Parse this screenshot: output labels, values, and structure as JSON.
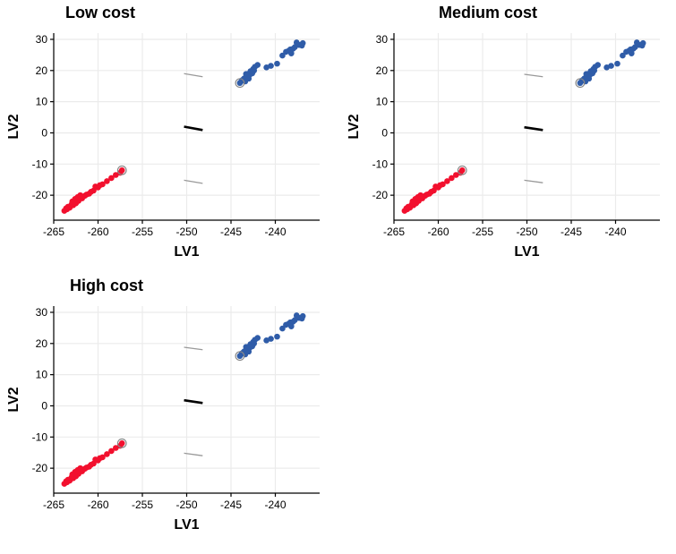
{
  "colors": {
    "group_high": "#2f5ca8",
    "group_low": "#f2102e",
    "center_line": "#000000",
    "bound_line": "#999999",
    "grid": "#ebebeb"
  },
  "chart_data": [
    {
      "type": "scatter",
      "title": "Low cost",
      "xlabel": "LV1",
      "ylabel": "LV2",
      "xlim": [
        -265,
        -235
      ],
      "ylim": [
        -28,
        32
      ],
      "xticks": [
        -265,
        -260,
        -255,
        -250,
        -245,
        -240
      ],
      "yticks": [
        -20,
        -10,
        0,
        10,
        20,
        30
      ],
      "grid": true,
      "series": [
        {
          "name": "blue group",
          "color": "#2f5ca8",
          "x": [
            -244.0,
            -243.8,
            -243.5,
            -243.2,
            -243.0,
            -242.8,
            -242.5,
            -242.3,
            -242.0,
            -243.6,
            -243.1,
            -242.7,
            -243.4,
            -242.9,
            -242.4,
            -243.0,
            -242.6,
            -243.3,
            -241.0,
            -240.5,
            -239.8,
            -239.2,
            -238.8,
            -238.3,
            -237.8,
            -237.3,
            -236.9,
            -238.5,
            -238.0,
            -237.6,
            -238.2,
            -237.0
          ],
          "y": [
            16.0,
            16.8,
            17.5,
            18.3,
            19.0,
            19.8,
            20.5,
            21.2,
            21.8,
            17.2,
            18.0,
            19.3,
            16.5,
            18.6,
            20.0,
            17.4,
            19.1,
            18.9,
            21.0,
            21.5,
            22.2,
            24.8,
            26.0,
            26.8,
            27.5,
            28.2,
            28.8,
            26.3,
            27.0,
            29.0,
            25.5,
            28.0
          ],
          "highlight": [
            -244.0,
            16.0
          ]
        },
        {
          "name": "red group",
          "color": "#f2102e",
          "x": [
            -263.8,
            -263.5,
            -263.2,
            -262.8,
            -262.5,
            -262.2,
            -261.8,
            -261.5,
            -261.0,
            -260.5,
            -260.0,
            -259.5,
            -259.0,
            -258.5,
            -258.0,
            -257.5,
            -257.3,
            -263.6,
            -263.0,
            -262.6,
            -262.0,
            -261.3,
            -260.8,
            -260.3,
            -259.8,
            -263.4,
            -262.9,
            -262.3
          ],
          "y": [
            -25.0,
            -24.5,
            -24.0,
            -23.2,
            -22.6,
            -21.8,
            -21.0,
            -20.2,
            -19.5,
            -18.5,
            -17.5,
            -16.5,
            -15.5,
            -14.5,
            -13.5,
            -12.8,
            -12.0,
            -24.2,
            -23.0,
            -21.2,
            -20.0,
            -19.8,
            -18.9,
            -17.2,
            -16.8,
            -23.7,
            -22.0,
            -20.6
          ],
          "highlight": [
            -257.3,
            -12.0
          ]
        }
      ],
      "segments": [
        {
          "kind": "center",
          "x": [
            -250.3,
            -248.2
          ],
          "y": [
            2.0,
            0.9
          ]
        },
        {
          "kind": "bound",
          "x": [
            -250.3,
            -248.2
          ],
          "y": [
            19.0,
            18.0
          ]
        },
        {
          "kind": "bound",
          "x": [
            -250.3,
            -248.2
          ],
          "y": [
            -15.2,
            -16.2
          ]
        }
      ]
    },
    {
      "type": "scatter",
      "title": "Medium cost",
      "xlabel": "LV1",
      "ylabel": "LV2",
      "xlim": [
        -265,
        -235
      ],
      "ylim": [
        -28,
        32
      ],
      "xticks": [
        -265,
        -260,
        -255,
        -250,
        -245,
        -240
      ],
      "yticks": [
        -20,
        -10,
        0,
        10,
        20,
        30
      ],
      "grid": true,
      "series": [
        {
          "name": "blue group",
          "color": "#2f5ca8",
          "x": [
            -244.0,
            -243.8,
            -243.5,
            -243.2,
            -243.0,
            -242.8,
            -242.5,
            -242.3,
            -242.0,
            -243.6,
            -243.1,
            -242.7,
            -243.4,
            -242.9,
            -242.4,
            -243.0,
            -242.6,
            -243.3,
            -241.0,
            -240.5,
            -239.8,
            -239.2,
            -238.8,
            -238.3,
            -237.8,
            -237.3,
            -236.9,
            -238.5,
            -238.0,
            -237.6,
            -238.2,
            -237.0
          ],
          "y": [
            16.0,
            16.8,
            17.5,
            18.3,
            19.0,
            19.8,
            20.5,
            21.2,
            21.8,
            17.2,
            18.0,
            19.3,
            16.5,
            18.6,
            20.0,
            17.4,
            19.1,
            18.9,
            21.0,
            21.5,
            22.2,
            24.8,
            26.0,
            26.8,
            27.5,
            28.2,
            28.8,
            26.3,
            27.0,
            29.0,
            25.5,
            28.0
          ],
          "highlight": [
            -244.0,
            16.0
          ]
        },
        {
          "name": "red group",
          "color": "#f2102e",
          "x": [
            -263.8,
            -263.5,
            -263.2,
            -262.8,
            -262.5,
            -262.2,
            -261.8,
            -261.5,
            -261.0,
            -260.5,
            -260.0,
            -259.5,
            -259.0,
            -258.5,
            -258.0,
            -257.5,
            -257.3,
            -263.6,
            -263.0,
            -262.6,
            -262.0,
            -261.3,
            -260.8,
            -260.3,
            -259.8,
            -263.4,
            -262.9,
            -262.3
          ],
          "y": [
            -25.0,
            -24.5,
            -24.0,
            -23.2,
            -22.6,
            -21.8,
            -21.0,
            -20.2,
            -19.5,
            -18.5,
            -17.5,
            -16.5,
            -15.5,
            -14.5,
            -13.5,
            -12.8,
            -12.0,
            -24.2,
            -23.0,
            -21.2,
            -20.0,
            -19.8,
            -18.9,
            -17.2,
            -16.8,
            -23.7,
            -22.0,
            -20.6
          ],
          "highlight": [
            -257.3,
            -12.0
          ]
        }
      ],
      "segments": [
        {
          "kind": "center",
          "x": [
            -250.3,
            -248.2
          ],
          "y": [
            1.8,
            0.9
          ]
        },
        {
          "kind": "bound",
          "x": [
            -250.3,
            -248.2
          ],
          "y": [
            18.8,
            18.0
          ]
        },
        {
          "kind": "bound",
          "x": [
            -250.3,
            -248.2
          ],
          "y": [
            -15.2,
            -16.0
          ]
        }
      ]
    },
    {
      "type": "scatter",
      "title": "High cost",
      "xlabel": "LV1",
      "ylabel": "LV2",
      "xlim": [
        -265,
        -235
      ],
      "ylim": [
        -28,
        32
      ],
      "xticks": [
        -265,
        -260,
        -255,
        -250,
        -245,
        -240
      ],
      "yticks": [
        -20,
        -10,
        0,
        10,
        20,
        30
      ],
      "grid": true,
      "series": [
        {
          "name": "blue group",
          "color": "#2f5ca8",
          "x": [
            -244.0,
            -243.8,
            -243.5,
            -243.2,
            -243.0,
            -242.8,
            -242.5,
            -242.3,
            -242.0,
            -243.6,
            -243.1,
            -242.7,
            -243.4,
            -242.9,
            -242.4,
            -243.0,
            -242.6,
            -243.3,
            -241.0,
            -240.5,
            -239.8,
            -239.2,
            -238.8,
            -238.3,
            -237.8,
            -237.3,
            -236.9,
            -238.5,
            -238.0,
            -237.6,
            -238.2,
            -237.0
          ],
          "y": [
            16.0,
            16.8,
            17.5,
            18.3,
            19.0,
            19.8,
            20.5,
            21.2,
            21.8,
            17.2,
            18.0,
            19.3,
            16.5,
            18.6,
            20.0,
            17.4,
            19.1,
            18.9,
            21.0,
            21.5,
            22.2,
            24.8,
            26.0,
            26.8,
            27.5,
            28.2,
            28.8,
            26.3,
            27.0,
            29.0,
            25.5,
            28.0
          ],
          "highlight": [
            -244.0,
            16.0
          ]
        },
        {
          "name": "red group",
          "color": "#f2102e",
          "x": [
            -263.8,
            -263.5,
            -263.2,
            -262.8,
            -262.5,
            -262.2,
            -261.8,
            -261.5,
            -261.0,
            -260.5,
            -260.0,
            -259.5,
            -259.0,
            -258.5,
            -258.0,
            -257.5,
            -257.3,
            -263.6,
            -263.0,
            -262.6,
            -262.0,
            -261.3,
            -260.8,
            -260.3,
            -259.8,
            -263.4,
            -262.9,
            -262.3
          ],
          "y": [
            -25.0,
            -24.5,
            -24.0,
            -23.2,
            -22.6,
            -21.8,
            -21.0,
            -20.2,
            -19.5,
            -18.5,
            -17.5,
            -16.5,
            -15.5,
            -14.5,
            -13.5,
            -12.8,
            -12.0,
            -24.2,
            -23.0,
            -21.2,
            -20.0,
            -19.8,
            -18.9,
            -17.2,
            -16.8,
            -23.7,
            -22.0,
            -20.6
          ],
          "highlight": [
            -257.3,
            -12.0
          ]
        }
      ],
      "segments": [
        {
          "kind": "center",
          "x": [
            -250.3,
            -248.2
          ],
          "y": [
            1.8,
            0.9
          ]
        },
        {
          "kind": "bound",
          "x": [
            -250.3,
            -248.2
          ],
          "y": [
            18.8,
            18.0
          ]
        },
        {
          "kind": "bound",
          "x": [
            -250.3,
            -248.2
          ],
          "y": [
            -15.2,
            -16.0
          ]
        }
      ]
    }
  ]
}
